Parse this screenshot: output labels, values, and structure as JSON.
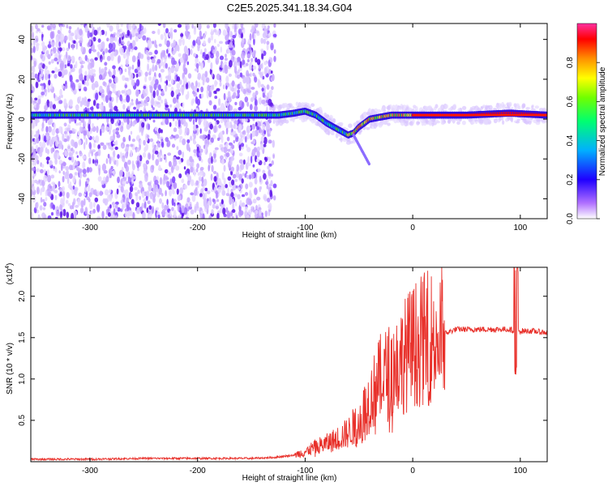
{
  "title": "C2E5.2025.341.18.34.G04",
  "chart_data": [
    {
      "type": "heatmap",
      "xlabel": "Height of straight line (km)",
      "ylabel": "Frequency (Hz)",
      "xlim": [
        -355,
        125
      ],
      "ylim": [
        -50,
        48
      ],
      "x_ticks": [
        -300,
        -200,
        -100,
        0,
        100
      ],
      "x_tick_labels": [
        "-300",
        "-200",
        "-100",
        "0",
        "100"
      ],
      "y_ticks": [
        -40,
        -20,
        0,
        20,
        40
      ],
      "y_tick_labels": [
        "-40",
        "-20",
        "0",
        "20",
        "40"
      ],
      "colorbar": {
        "label": "Normalized spectral amplitude",
        "range": [
          0,
          1
        ],
        "ticks": [
          0.0,
          0.2,
          0.4,
          0.6,
          0.8
        ],
        "tick_labels": [
          "0.0",
          "0.2",
          "0.4",
          "0.6",
          "0.8"
        ]
      },
      "ridge": {
        "x": [
          -355,
          -300,
          -250,
          -200,
          -150,
          -125,
          -110,
          -100,
          -90,
          -80,
          -70,
          -60,
          -55,
          -50,
          -45,
          -40,
          -30,
          -20,
          -10,
          0,
          50,
          90,
          125
        ],
        "freq": [
          2,
          2,
          2,
          2,
          2,
          2,
          3,
          4,
          2,
          -2,
          -5,
          -8,
          -7,
          -4,
          -2,
          0,
          1,
          2,
          2,
          2,
          2,
          3,
          2
        ]
      }
    },
    {
      "type": "line",
      "xlabel": "Height of straight line (km)",
      "ylabel": "SNR (10 * v/v)",
      "y_scale_label": "(x10",
      "y_scale_exponent": "4",
      "xlim": [
        -355,
        125
      ],
      "ylim": [
        0,
        2.35
      ],
      "x_ticks": [
        -300,
        -200,
        -100,
        0,
        100
      ],
      "x_tick_labels": [
        "-300",
        "-200",
        "-100",
        "0",
        "100"
      ],
      "y_ticks": [
        0.5,
        1.0,
        1.5,
        2.0
      ],
      "y_tick_labels": [
        "0.5",
        "1.0",
        "1.5",
        "2.0"
      ],
      "color": "#e8302a",
      "envelope": {
        "x": [
          -355,
          -300,
          -250,
          -200,
          -150,
          -130,
          -110,
          -100,
          -90,
          -80,
          -70,
          -60,
          -50,
          -40,
          -30,
          -20,
          -10,
          0,
          10,
          20,
          30,
          40,
          60,
          80,
          90,
          95,
          100,
          110,
          125
        ],
        "y": [
          0.03,
          0.03,
          0.04,
          0.04,
          0.04,
          0.05,
          0.08,
          0.12,
          0.18,
          0.22,
          0.28,
          0.35,
          0.5,
          0.75,
          1.0,
          1.1,
          1.25,
          1.4,
          1.48,
          1.52,
          1.55,
          1.6,
          1.6,
          1.6,
          1.6,
          1.58,
          1.58,
          1.58,
          1.56
        ]
      }
    }
  ]
}
